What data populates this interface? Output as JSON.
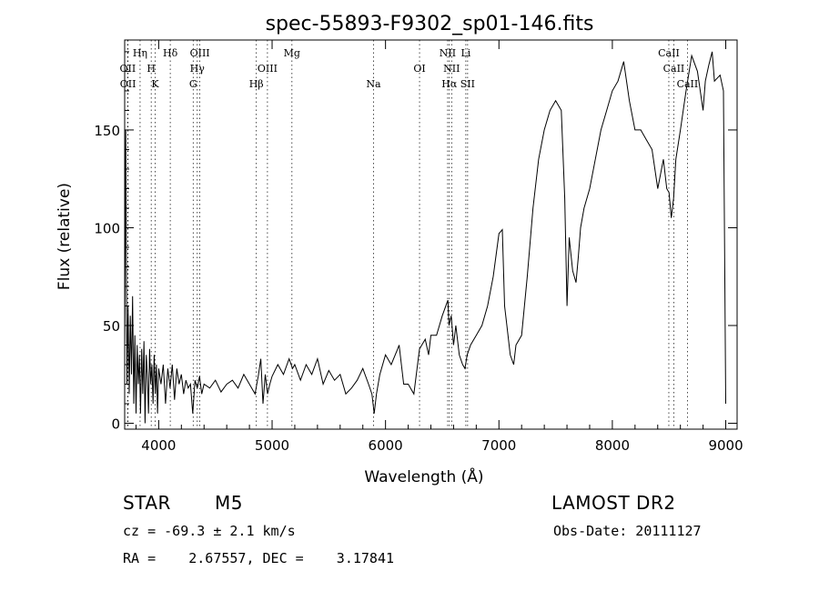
{
  "chart_data": {
    "type": "line",
    "title": "spec-55893-F9302_sp01-146.fits",
    "xlabel": "Wavelength (Å)",
    "ylabel": "Flux (relative)",
    "xlim": [
      3700,
      9100
    ],
    "ylim": [
      -3,
      196
    ],
    "xticks": [
      4000,
      5000,
      6000,
      7000,
      8000,
      9000
    ],
    "yticks": [
      0,
      50,
      100,
      150
    ],
    "grid": false,
    "legend": "none",
    "line_color": "#000000",
    "series": [
      {
        "x": [
          3700,
          3710,
          3720,
          3730,
          3740,
          3750,
          3760,
          3770,
          3780,
          3790,
          3800,
          3810,
          3820,
          3830,
          3840,
          3850,
          3860,
          3870,
          3880,
          3890,
          3900,
          3910,
          3920,
          3930,
          3940,
          3950,
          3960,
          3970,
          3980,
          3990,
          4000,
          4020,
          4040,
          4060,
          4080,
          4100,
          4120,
          4140,
          4160,
          4180,
          4200,
          4220,
          4240,
          4260,
          4280,
          4300,
          4320,
          4340,
          4360,
          4380,
          4400,
          4450,
          4500,
          4550,
          4600,
          4650,
          4700,
          4750,
          4800,
          4850,
          4880,
          4900,
          4920,
          4940,
          4960,
          4980,
          5000,
          5050,
          5100,
          5150,
          5180,
          5200,
          5250,
          5300,
          5350,
          5400,
          5450,
          5500,
          5550,
          5600,
          5650,
          5700,
          5750,
          5800,
          5850,
          5880,
          5900,
          5920,
          5950,
          6000,
          6050,
          6100,
          6120,
          6140,
          6160,
          6200,
          6250,
          6300,
          6350,
          6380,
          6400,
          6450,
          6500,
          6550,
          6560,
          6580,
          6600,
          6620,
          6650,
          6680,
          6700,
          6720,
          6750,
          6800,
          6850,
          6900,
          6950,
          7000,
          7030,
          7050,
          7070,
          7100,
          7130,
          7150,
          7200,
          7250,
          7300,
          7350,
          7400,
          7450,
          7500,
          7550,
          7580,
          7600,
          7620,
          7650,
          7680,
          7700,
          7720,
          7750,
          7800,
          7850,
          7900,
          7950,
          8000,
          8050,
          8100,
          8150,
          8200,
          8250,
          8300,
          8350,
          8400,
          8450,
          8480,
          8500,
          8520,
          8540,
          8560,
          8600,
          8650,
          8700,
          8750,
          8800,
          8820,
          8850,
          8880,
          8900,
          8950,
          8980,
          9000
        ],
        "y": [
          40,
          150,
          20,
          60,
          15,
          55,
          25,
          65,
          10,
          45,
          5,
          40,
          20,
          35,
          5,
          38,
          15,
          42,
          0,
          35,
          25,
          5,
          38,
          20,
          30,
          10,
          35,
          15,
          30,
          5,
          28,
          20,
          30,
          10,
          28,
          18,
          30,
          12,
          28,
          20,
          25,
          15,
          22,
          18,
          20,
          5,
          22,
          18,
          24,
          15,
          20,
          18,
          22,
          16,
          20,
          22,
          18,
          25,
          20,
          15,
          25,
          33,
          10,
          25,
          15,
          20,
          24,
          30,
          25,
          33,
          28,
          30,
          22,
          30,
          25,
          33,
          20,
          27,
          22,
          25,
          15,
          18,
          22,
          28,
          20,
          15,
          5,
          15,
          25,
          35,
          30,
          37,
          40,
          30,
          20,
          20,
          15,
          38,
          43,
          35,
          45,
          45,
          55,
          63,
          50,
          55,
          40,
          50,
          35,
          30,
          28,
          35,
          40,
          45,
          50,
          60,
          75,
          97,
          99,
          60,
          50,
          35,
          30,
          40,
          45,
          75,
          110,
          135,
          150,
          160,
          165,
          160,
          115,
          60,
          95,
          78,
          72,
          85,
          100,
          110,
          120,
          135,
          150,
          160,
          170,
          175,
          185,
          165,
          150,
          150,
          145,
          140,
          120,
          135,
          120,
          118,
          105,
          115,
          135,
          150,
          170,
          188,
          180,
          160,
          175,
          183,
          190,
          175,
          178,
          170,
          10
        ]
      }
    ],
    "line_annotations": [
      {
        "label": "OII",
        "x": 3727,
        "row": 1
      },
      {
        "label": "OII",
        "x": 3729,
        "row": 2
      },
      {
        "label": "Hη",
        "x": 3836,
        "row": 0
      },
      {
        "label": "H",
        "x": 3934,
        "row": 1
      },
      {
        "label": "K",
        "x": 3969,
        "row": 2
      },
      {
        "label": "Hδ",
        "x": 4102,
        "row": 0
      },
      {
        "label": "OIII",
        "x": 4363,
        "row": 0
      },
      {
        "label": "Hγ",
        "x": 4340,
        "row": 1
      },
      {
        "label": "G",
        "x": 4304,
        "row": 2
      },
      {
        "label": "Hβ",
        "x": 4861,
        "row": 2
      },
      {
        "label": "OIII",
        "x": 4959,
        "row": 1
      },
      {
        "label": "Mg",
        "x": 5175,
        "row": 0
      },
      {
        "label": "Na",
        "x": 5894,
        "row": 2
      },
      {
        "label": "OI",
        "x": 6300,
        "row": 1
      },
      {
        "label": "NII",
        "x": 6548,
        "row": 0
      },
      {
        "label": "NII",
        "x": 6583,
        "row": 1
      },
      {
        "label": "Hα",
        "x": 6563,
        "row": 2
      },
      {
        "label": "Li",
        "x": 6708,
        "row": 0
      },
      {
        "label": "SII",
        "x": 6724,
        "row": 2
      },
      {
        "label": "CaII",
        "x": 8498,
        "row": 0
      },
      {
        "label": "CaII",
        "x": 8542,
        "row": 1
      },
      {
        "label": "CaII",
        "x": 8662,
        "row": 2
      }
    ]
  },
  "info": {
    "object_type": "STAR",
    "subclass": "M5",
    "survey": "LAMOST DR2",
    "velocity": "cz = -69.3 ± 2.1 km/s",
    "obs_date": "Obs-Date: 20111127",
    "coords": "RA =    2.67557, DEC =    3.17841"
  }
}
